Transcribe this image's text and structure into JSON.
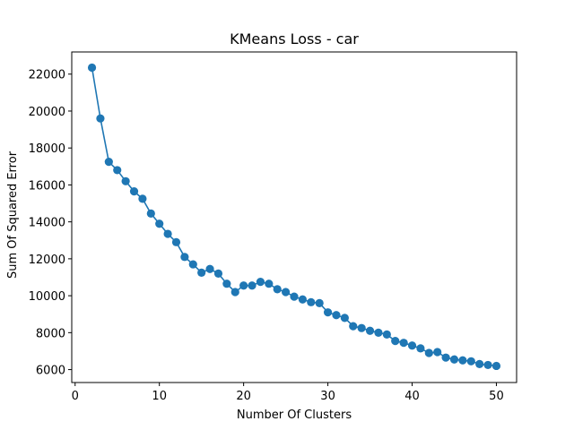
{
  "chart_data": {
    "type": "line",
    "title": "KMeans Loss - car",
    "xlabel": "Number Of Clusters",
    "ylabel": "Sum Of Squared Error",
    "xlim": [
      -0.4,
      52.4
    ],
    "ylim": [
      5300,
      23200
    ],
    "xticks": [
      0,
      10,
      20,
      30,
      40,
      50
    ],
    "yticks": [
      6000,
      8000,
      10000,
      12000,
      14000,
      16000,
      18000,
      20000,
      22000
    ],
    "grid": false,
    "color": "#1f77b4",
    "markers": "circle",
    "series": [
      {
        "x": [
          2,
          3,
          4,
          5,
          6,
          7,
          8,
          9,
          10,
          11,
          12,
          13,
          14,
          15,
          16,
          17,
          18,
          19,
          20,
          21,
          22,
          23,
          24,
          25,
          26,
          27,
          28,
          29,
          30,
          31,
          32,
          33,
          34,
          35,
          36,
          37,
          38,
          39,
          40,
          41,
          42,
          43,
          44,
          45,
          46,
          47,
          48,
          49,
          50
        ],
        "values": [
          22350,
          19600,
          17250,
          16800,
          16200,
          15650,
          15250,
          14450,
          13900,
          13350,
          12900,
          12100,
          11700,
          11250,
          11450,
          11200,
          10650,
          10200,
          10550,
          10550,
          10750,
          10650,
          10350,
          10200,
          9950,
          9800,
          9650,
          9600,
          9100,
          8950,
          8800,
          8350,
          8250,
          8100,
          8000,
          7900,
          7550,
          7450,
          7300,
          7150,
          6900,
          6950,
          6650,
          6550,
          6500,
          6450,
          6300,
          6250,
          6200
        ]
      }
    ]
  }
}
